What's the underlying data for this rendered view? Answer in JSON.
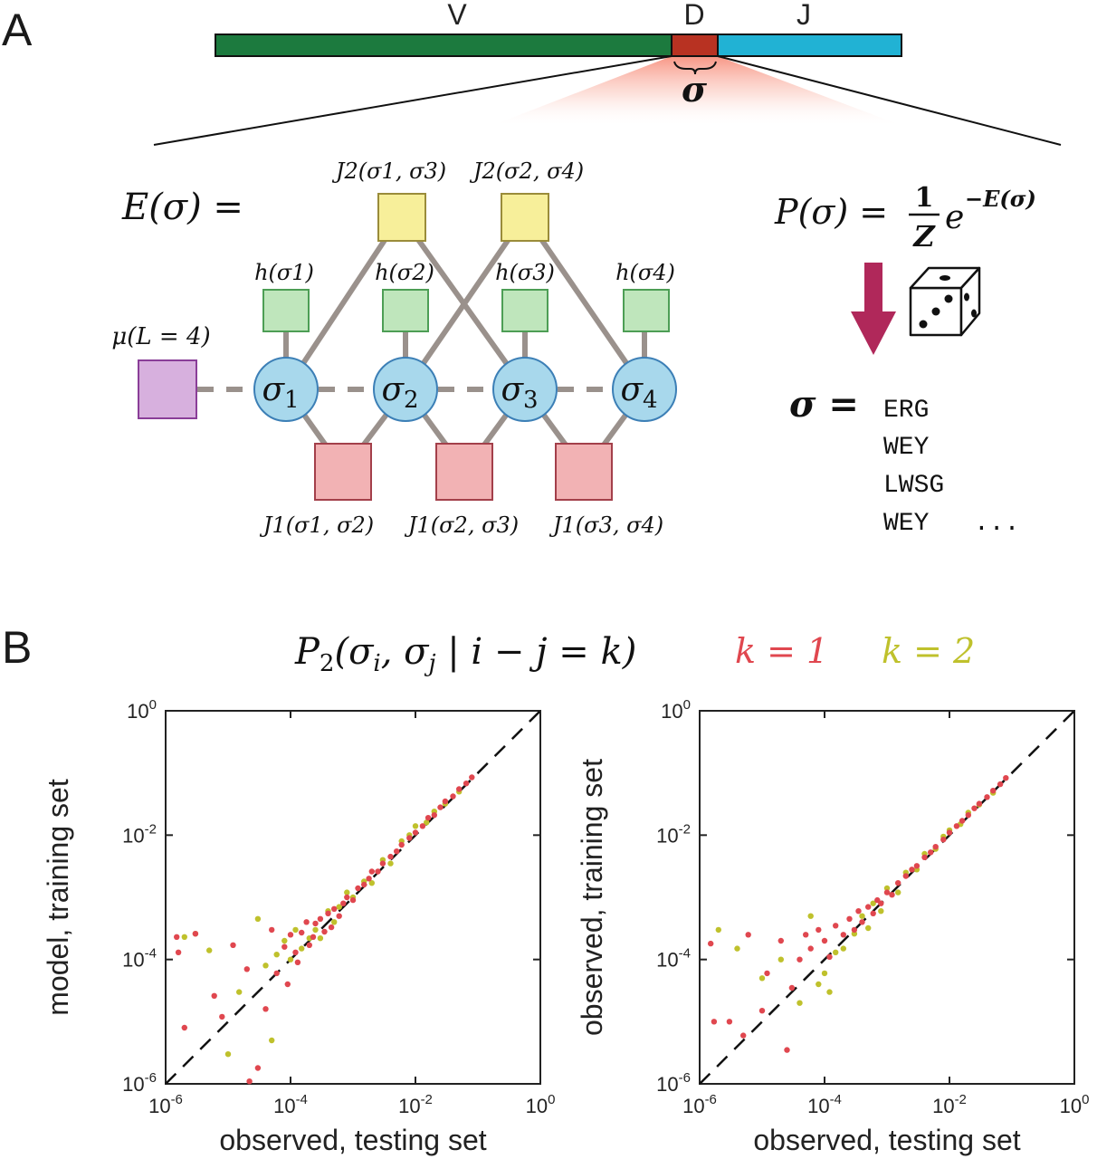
{
  "panel_a": {
    "panel_label": "A",
    "gene": {
      "segments": [
        {
          "label": "V",
          "color": "#1c7a3e"
        },
        {
          "label": "D",
          "color": "#b83222"
        },
        {
          "label": "J",
          "color": "#21b2d4"
        }
      ],
      "brace_label": "σ"
    },
    "energy_label": "E(σ) =",
    "prob_formula": "P(σ) = (1/Z) e^{−E(σ)}",
    "prob_parts": {
      "lhs": "P(σ) =",
      "num": "1",
      "den": "Z",
      "base": "e",
      "exp": "−E(σ)"
    },
    "length_factor": "μ(L = 4)",
    "nodes": [
      {
        "sym": "σ",
        "sub": "1"
      },
      {
        "sym": "σ",
        "sub": "2"
      },
      {
        "sym": "σ",
        "sub": "3"
      },
      {
        "sym": "σ",
        "sub": "4"
      }
    ],
    "h_factors": [
      "h(σ1)",
      "h(σ2)",
      "h(σ3)",
      "h(σ4)"
    ],
    "j1_factors": [
      "J1(σ1, σ2)",
      "J1(σ2, σ3)",
      "J1(σ3, σ4)"
    ],
    "j2_factors": [
      "J2(σ1, σ3)",
      "J2(σ2, σ4)"
    ],
    "samples_label": "σ =",
    "samples": [
      "ERG",
      "WEY",
      "LWSG",
      "WEY"
    ],
    "samples_more": "...",
    "colors": {
      "node_fill": "#a8d8ec",
      "node_stroke": "#3c7fb6",
      "h_fill": "#bfe6bc",
      "h_stroke": "#4d9e55",
      "j1_fill": "#f2b2b4",
      "j1_stroke": "#a33f4a",
      "j2_fill": "#f7ef9a",
      "j2_stroke": "#9a8c3a",
      "mu_fill": "#d7b0de",
      "mu_stroke": "#8a3e98",
      "edge": "#9a918c",
      "arrow": "#b0285a"
    }
  },
  "panel_b": {
    "panel_label": "B",
    "title": "P2(σi, σj | i − j = k)",
    "title_parts": {
      "base": "P",
      "sub": "2",
      "args": "(σ",
      "i": "i",
      "sep": ", σ",
      "j": "j",
      "bar": " | i − j = k)"
    },
    "legend": [
      {
        "label": "k = 1",
        "color": "#e0474f"
      },
      {
        "label": "k = 2",
        "color": "#bfc12c"
      }
    ]
  },
  "chart_data": [
    {
      "type": "scatter",
      "xlabel": "observed, testing set",
      "ylabel": "model, training set",
      "xscale": "log",
      "yscale": "log",
      "xlim": [
        1e-06,
        1
      ],
      "ylim": [
        1e-06,
        1
      ],
      "xticks": [
        "10-6",
        "10-4",
        "10-2",
        "100"
      ],
      "yticks": [
        "10-6",
        "10-4",
        "10-2",
        "100"
      ],
      "reference_line": "y = x (dashed)",
      "series": [
        {
          "name": "k = 1",
          "color": "#e0474f",
          "points": [
            [
              1.5e-06,
              0.00023
            ],
            [
              1.6e-06,
              0.00013
            ],
            [
              2e-06,
              8e-06
            ],
            [
              3e-06,
              0.00026
            ],
            [
              6e-06,
              2.6e-05
            ],
            [
              8e-06,
              1.2e-05
            ],
            [
              1.2e-05,
              0.00017
            ],
            [
              2e-05,
              7e-05
            ],
            [
              2.2e-05,
              1.1e-06
            ],
            [
              3e-05,
              1.8e-06
            ],
            [
              4e-05,
              1.6e-05
            ],
            [
              5e-05,
              0.0003
            ],
            [
              6e-05,
              6e-05
            ],
            [
              8e-05,
              0.00016
            ],
            [
              9e-05,
              4e-05
            ],
            [
              0.0001,
              0.00025
            ],
            [
              0.00012,
              0.00013
            ],
            [
              0.00013,
              9e-05
            ],
            [
              0.00015,
              0.00027
            ],
            [
              0.00018,
              0.0004
            ],
            [
              0.0002,
              0.00017
            ],
            [
              0.00023,
              0.00023
            ],
            [
              0.00025,
              0.00038
            ],
            [
              0.0003,
              0.00045
            ],
            [
              0.00035,
              0.00028
            ],
            [
              0.0004,
              0.00055
            ],
            [
              0.00045,
              0.00033
            ],
            [
              0.0005,
              0.00065
            ],
            [
              0.0006,
              0.0005
            ],
            [
              0.0007,
              0.0008
            ],
            [
              0.0008,
              0.001
            ],
            [
              0.001,
              0.0009
            ],
            [
              0.0012,
              0.0014
            ],
            [
              0.0015,
              0.0016
            ],
            [
              0.0018,
              0.002
            ],
            [
              0.002,
              0.0026
            ],
            [
              0.0025,
              0.0026
            ],
            [
              0.003,
              0.0035
            ],
            [
              0.004,
              0.0045
            ],
            [
              0.005,
              0.0055
            ],
            [
              0.006,
              0.007
            ],
            [
              0.008,
              0.009
            ],
            [
              0.01,
              0.011
            ],
            [
              0.013,
              0.014
            ],
            [
              0.016,
              0.019
            ],
            [
              0.02,
              0.021
            ],
            [
              0.025,
              0.028
            ],
            [
              0.03,
              0.035
            ],
            [
              0.04,
              0.042
            ],
            [
              0.05,
              0.055
            ],
            [
              0.065,
              0.068
            ],
            [
              0.08,
              0.085
            ]
          ]
        },
        {
          "name": "k = 2",
          "color": "#bfc12c",
          "points": [
            [
              2e-06,
              0.00023
            ],
            [
              3e-06,
              0.00026
            ],
            [
              5e-06,
              0.00014
            ],
            [
              1e-05,
              3e-06
            ],
            [
              1.5e-05,
              3e-05
            ],
            [
              3e-05,
              0.00045
            ],
            [
              4e-05,
              8e-05
            ],
            [
              5e-05,
              5e-06
            ],
            [
              6e-05,
              0.00012
            ],
            [
              8e-05,
              0.0002
            ],
            [
              0.0001,
              0.0001
            ],
            [
              0.00012,
              0.0003
            ],
            [
              0.00015,
              0.00015
            ],
            [
              0.0002,
              0.00022
            ],
            [
              0.00025,
              0.0003
            ],
            [
              0.0003,
              0.00022
            ],
            [
              0.0004,
              0.0006
            ],
            [
              0.0005,
              0.0004
            ],
            [
              0.0006,
              0.0007
            ],
            [
              0.0008,
              0.0012
            ],
            [
              0.001,
              0.001
            ],
            [
              0.0015,
              0.0018
            ],
            [
              0.002,
              0.0017
            ],
            [
              0.003,
              0.004
            ],
            [
              0.004,
              0.0035
            ],
            [
              0.006,
              0.008
            ],
            [
              0.008,
              0.01
            ],
            [
              0.01,
              0.014
            ],
            [
              0.015,
              0.016
            ],
            [
              0.02,
              0.024
            ],
            [
              0.03,
              0.032
            ],
            [
              0.05,
              0.05
            ]
          ]
        }
      ]
    },
    {
      "type": "scatter",
      "xlabel": "observed, testing set",
      "ylabel": "observed, training set",
      "xscale": "log",
      "yscale": "log",
      "xlim": [
        1e-06,
        1
      ],
      "ylim": [
        1e-06,
        1
      ],
      "xticks": [
        "10-6",
        "10-4",
        "10-2",
        "100"
      ],
      "yticks": [
        "10-6",
        "10-4",
        "10-2",
        "100"
      ],
      "reference_line": "y = x (dashed)",
      "series": [
        {
          "name": "k = 1",
          "color": "#e0474f",
          "points": [
            [
              1.5e-06,
              0.00018
            ],
            [
              1.7e-06,
              1e-05
            ],
            [
              3e-06,
              1e-05
            ],
            [
              5e-06,
              6e-06
            ],
            [
              6e-06,
              0.00025
            ],
            [
              1e-05,
              1.5e-05
            ],
            [
              1.2e-05,
              6e-05
            ],
            [
              2e-05,
              0.0002
            ],
            [
              2.5e-05,
              3.5e-06
            ],
            [
              3e-05,
              3.5e-05
            ],
            [
              4e-05,
              0.0001
            ],
            [
              5e-05,
              0.00025
            ],
            [
              6e-05,
              0.00015
            ],
            [
              8e-05,
              0.0003
            ],
            [
              0.0001,
              0.0002
            ],
            [
              0.00012,
              0.00011
            ],
            [
              0.00015,
              0.00035
            ],
            [
              0.0002,
              0.00025
            ],
            [
              0.00025,
              0.00045
            ],
            [
              0.0003,
              0.0003
            ],
            [
              0.00035,
              0.0006
            ],
            [
              0.0004,
              0.0004
            ],
            [
              0.0005,
              0.0007
            ],
            [
              0.0006,
              0.00055
            ],
            [
              0.0007,
              0.0009
            ],
            [
              0.0008,
              0.0008
            ],
            [
              0.001,
              0.0012
            ],
            [
              0.0012,
              0.0011
            ],
            [
              0.0015,
              0.0017
            ],
            [
              0.002,
              0.0022
            ],
            [
              0.0025,
              0.0028
            ],
            [
              0.003,
              0.0032
            ],
            [
              0.004,
              0.0044
            ],
            [
              0.005,
              0.0053
            ],
            [
              0.006,
              0.0065
            ],
            [
              0.008,
              0.0085
            ],
            [
              0.01,
              0.011
            ],
            [
              0.013,
              0.014
            ],
            [
              0.016,
              0.017
            ],
            [
              0.02,
              0.021
            ],
            [
              0.025,
              0.027
            ],
            [
              0.03,
              0.032
            ],
            [
              0.04,
              0.041
            ],
            [
              0.05,
              0.052
            ],
            [
              0.065,
              0.066
            ],
            [
              0.08,
              0.083
            ]
          ]
        },
        {
          "name": "k = 2",
          "color": "#bfc12c",
          "points": [
            [
              2e-06,
              0.0003
            ],
            [
              4e-06,
              0.00015
            ],
            [
              1e-05,
              5e-05
            ],
            [
              2e-05,
              0.0001
            ],
            [
              4e-05,
              2e-05
            ],
            [
              6e-05,
              0.0005
            ],
            [
              8e-05,
              4e-05
            ],
            [
              0.0001,
              6e-05
            ],
            [
              0.00012,
              3e-05
            ],
            [
              0.00015,
              0.00013
            ],
            [
              0.0002,
              0.00015
            ],
            [
              0.0003,
              0.00026
            ],
            [
              0.0004,
              0.0005
            ],
            [
              0.0005,
              0.00032
            ],
            [
              0.0006,
              0.0008
            ],
            [
              0.0008,
              0.0006
            ],
            [
              0.001,
              0.0014
            ],
            [
              0.0015,
              0.0012
            ],
            [
              0.002,
              0.0025
            ],
            [
              0.003,
              0.0028
            ],
            [
              0.004,
              0.005
            ],
            [
              0.006,
              0.006
            ],
            [
              0.008,
              0.0095
            ],
            [
              0.01,
              0.012
            ],
            [
              0.015,
              0.015
            ],
            [
              0.02,
              0.023
            ],
            [
              0.03,
              0.031
            ],
            [
              0.05,
              0.048
            ]
          ]
        }
      ]
    }
  ]
}
